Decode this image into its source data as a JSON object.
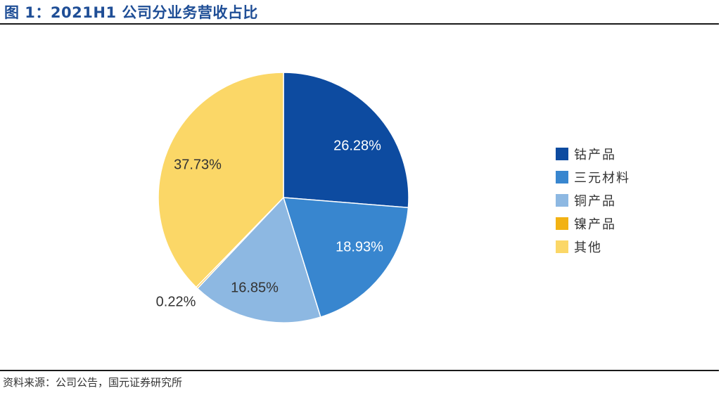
{
  "header": {
    "title": "图 1：2021H1 公司分业务营收占比"
  },
  "footer": {
    "source": "资料来源：公司公告，国元证券研究所"
  },
  "chart_data": {
    "type": "pie",
    "title": "",
    "slices": [
      {
        "name": "钴产品",
        "value": 26.28,
        "label": "26.28%",
        "color": "#0d4ba0"
      },
      {
        "name": "三元材料",
        "value": 18.93,
        "label": "18.93%",
        "color": "#3886cf"
      },
      {
        "name": "铜产品",
        "value": 16.85,
        "label": "16.85%",
        "color": "#8db8e2"
      },
      {
        "name": "镍产品",
        "value": 0.22,
        "label": "0.22%",
        "color": "#f2b214"
      },
      {
        "name": "其他",
        "value": 37.73,
        "label": "37.73%",
        "color": "#fbd767"
      }
    ],
    "legend_position": "right"
  }
}
